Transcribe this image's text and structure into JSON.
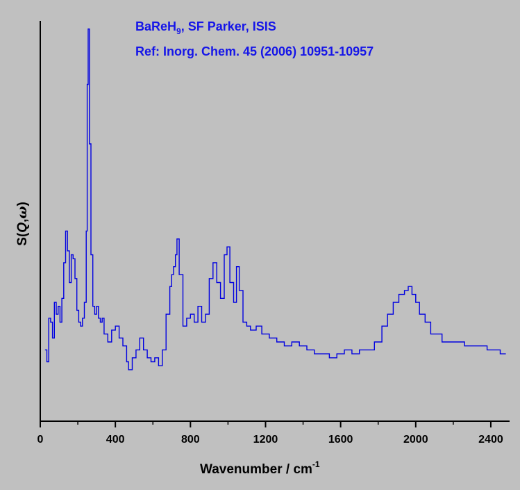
{
  "colors": {
    "background": "#c0c0c0",
    "axis": "#000000",
    "series": "#0000e0",
    "title": "#1515e8"
  },
  "chart_data": {
    "type": "line",
    "title_parts": {
      "main": "BaReH",
      "sub": "9",
      "rest": ", SF Parker, ISIS"
    },
    "subtitle": "Ref: Inorg. Chem. 45 (2006) 10951-10957",
    "xlabel": {
      "main": "Wavenumber / cm",
      "sup": "-1"
    },
    "ylabel": {
      "s": "S(",
      "q": "Q",
      "comma": ",",
      "omega": "ω",
      "close": ")"
    },
    "xlim": [
      0,
      2500
    ],
    "ylim": [
      0,
      1
    ],
    "xticks": [
      0,
      400,
      800,
      1200,
      1600,
      2000,
      2400
    ],
    "xtick_labels": [
      "0",
      "400",
      "800",
      "1200",
      "1600",
      "2000",
      "2400"
    ],
    "step_style": true,
    "grid": false,
    "series": [
      {
        "x": [
          25,
          35,
          45,
          55,
          65,
          75,
          85,
          95,
          105,
          115,
          125,
          135,
          145,
          155,
          165,
          175,
          185,
          195,
          205,
          215,
          225,
          235,
          245,
          250,
          255,
          262,
          270,
          280,
          290,
          300,
          310,
          320,
          330,
          340,
          360,
          380,
          400,
          420,
          440,
          460,
          470,
          490,
          510,
          530,
          550,
          570,
          590,
          610,
          630,
          650,
          670,
          690,
          700,
          710,
          720,
          728,
          740,
          760,
          780,
          800,
          820,
          840,
          860,
          880,
          900,
          920,
          940,
          960,
          980,
          995,
          1010,
          1030,
          1045,
          1060,
          1080,
          1100,
          1120,
          1150,
          1180,
          1220,
          1260,
          1300,
          1340,
          1380,
          1420,
          1460,
          1500,
          1540,
          1580,
          1620,
          1660,
          1700,
          1740,
          1780,
          1820,
          1850,
          1880,
          1910,
          1940,
          1960,
          1980,
          2000,
          2020,
          2050,
          2080,
          2110,
          2140,
          2180,
          2220,
          2260,
          2300,
          2340,
          2380,
          2420,
          2450,
          2480
        ],
        "y": [
          0.18,
          0.15,
          0.26,
          0.25,
          0.21,
          0.3,
          0.27,
          0.29,
          0.25,
          0.31,
          0.4,
          0.48,
          0.43,
          0.35,
          0.42,
          0.41,
          0.36,
          0.28,
          0.25,
          0.24,
          0.26,
          0.3,
          0.48,
          0.85,
          0.99,
          0.7,
          0.42,
          0.29,
          0.27,
          0.29,
          0.26,
          0.25,
          0.26,
          0.22,
          0.2,
          0.23,
          0.24,
          0.21,
          0.19,
          0.15,
          0.13,
          0.16,
          0.18,
          0.21,
          0.18,
          0.16,
          0.15,
          0.16,
          0.14,
          0.18,
          0.27,
          0.34,
          0.37,
          0.39,
          0.42,
          0.46,
          0.37,
          0.24,
          0.26,
          0.27,
          0.25,
          0.29,
          0.25,
          0.27,
          0.36,
          0.4,
          0.35,
          0.31,
          0.42,
          0.44,
          0.35,
          0.3,
          0.39,
          0.33,
          0.25,
          0.24,
          0.23,
          0.24,
          0.22,
          0.21,
          0.2,
          0.19,
          0.2,
          0.19,
          0.18,
          0.17,
          0.17,
          0.16,
          0.17,
          0.18,
          0.17,
          0.18,
          0.18,
          0.2,
          0.24,
          0.27,
          0.3,
          0.32,
          0.33,
          0.34,
          0.32,
          0.3,
          0.27,
          0.25,
          0.22,
          0.22,
          0.2,
          0.2,
          0.2,
          0.19,
          0.19,
          0.19,
          0.18,
          0.18,
          0.17,
          0.17
        ]
      }
    ]
  }
}
